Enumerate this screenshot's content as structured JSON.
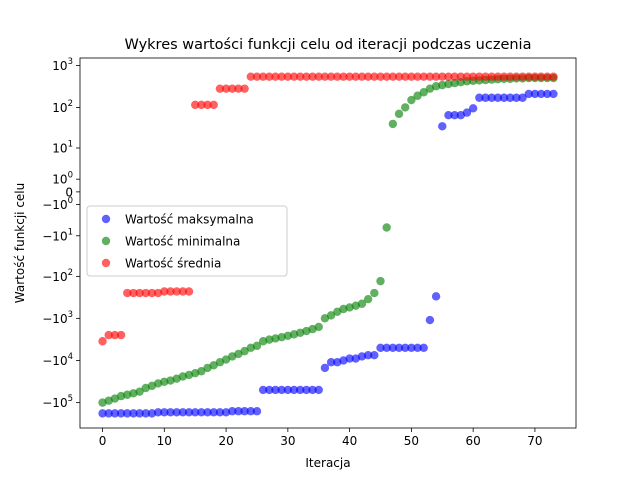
{
  "chart_data": {
    "type": "scatter",
    "title": "Wykres wartości funkcji celu od iteracji podczas uczenia",
    "xlabel": "Iteracja",
    "ylabel": "Wartość funkcji celu",
    "xlim": [
      -3.65,
      76.65
    ],
    "yscale": "symlog",
    "ylim": [
      -400000,
      1500
    ],
    "grid": false,
    "legend_position": "center-left",
    "x_ticks": [
      0,
      10,
      20,
      30,
      40,
      50,
      60,
      70
    ],
    "y_ticks": [
      {
        "value": 1000,
        "base": "10",
        "exp": "3",
        "sign": ""
      },
      {
        "value": 100,
        "base": "10",
        "exp": "2",
        "sign": ""
      },
      {
        "value": 10,
        "base": "10",
        "exp": "1",
        "sign": ""
      },
      {
        "value": 1,
        "base": "10",
        "exp": "0",
        "sign": ""
      },
      {
        "value": 0,
        "base": "0",
        "exp": "",
        "sign": ""
      },
      {
        "value": -1,
        "base": "10",
        "exp": "0",
        "sign": "−"
      },
      {
        "value": -10,
        "base": "10",
        "exp": "1",
        "sign": "−"
      },
      {
        "value": -100,
        "base": "10",
        "exp": "2",
        "sign": "−"
      },
      {
        "value": -1000,
        "base": "10",
        "exp": "3",
        "sign": "−"
      },
      {
        "value": -10000,
        "base": "10",
        "exp": "4",
        "sign": "−"
      },
      {
        "value": -100000,
        "base": "10",
        "exp": "5",
        "sign": "−"
      }
    ],
    "series": [
      {
        "name": "Wartość maksymalna",
        "color": "#0000ff",
        "x": [
          0,
          1,
          2,
          3,
          4,
          5,
          6,
          7,
          8,
          9,
          10,
          11,
          12,
          13,
          14,
          15,
          16,
          17,
          18,
          19,
          20,
          21,
          22,
          23,
          24,
          25,
          26,
          27,
          28,
          29,
          30,
          31,
          32,
          33,
          34,
          35,
          36,
          37,
          38,
          39,
          40,
          41,
          42,
          43,
          44,
          45,
          46,
          47,
          48,
          49,
          50,
          51,
          52,
          53,
          54,
          55,
          56,
          57,
          58,
          59,
          60,
          61,
          62,
          63,
          64,
          65,
          66,
          67,
          68,
          69,
          70,
          71,
          72,
          73
        ],
        "y": [
          -180000,
          -180000,
          -180000,
          -180000,
          -180000,
          -180000,
          -180000,
          -180000,
          -180000,
          -170000,
          -170000,
          -170000,
          -170000,
          -170000,
          -170000,
          -170000,
          -170000,
          -170000,
          -170000,
          -170000,
          -170000,
          -160000,
          -160000,
          -160000,
          -160000,
          -160000,
          -50000,
          -50000,
          -50000,
          -50000,
          -50000,
          -50000,
          -50000,
          -50000,
          -50000,
          -50000,
          -15000,
          -11000,
          -11000,
          -10000,
          -9000,
          -9000,
          -8000,
          -7500,
          -7500,
          -5000,
          -5000,
          -5000,
          -5000,
          -5000,
          -5000,
          -5000,
          -5000,
          -1100,
          -300,
          35,
          65,
          65,
          65,
          75,
          95,
          170,
          170,
          170,
          170,
          170,
          170,
          170,
          170,
          210,
          210,
          210,
          210,
          210
        ]
      },
      {
        "name": "Wartość minimalna",
        "color": "#008000",
        "x": [
          0,
          1,
          2,
          3,
          4,
          5,
          6,
          7,
          8,
          9,
          10,
          11,
          12,
          13,
          14,
          15,
          16,
          17,
          18,
          19,
          20,
          21,
          22,
          23,
          24,
          25,
          26,
          27,
          28,
          29,
          30,
          31,
          32,
          33,
          34,
          35,
          36,
          37,
          38,
          39,
          40,
          41,
          42,
          43,
          44,
          45,
          46,
          47,
          48,
          49,
          50,
          51,
          52,
          53,
          54,
          55,
          56,
          57,
          58,
          59,
          60,
          61,
          62,
          63,
          64,
          65,
          66,
          67,
          68,
          69,
          70,
          71,
          72,
          73
        ],
        "y": [
          -100000,
          -90000,
          -80000,
          -70000,
          -65000,
          -60000,
          -55000,
          -45000,
          -40000,
          -35000,
          -32000,
          -30000,
          -27000,
          -24000,
          -22000,
          -20000,
          -18000,
          -15000,
          -13000,
          -11000,
          -9500,
          -8000,
          -7000,
          -6000,
          -5000,
          -4500,
          -3500,
          -3200,
          -3000,
          -2800,
          -2600,
          -2400,
          -2200,
          -2000,
          -1800,
          -1600,
          -1000,
          -850,
          -700,
          -600,
          -550,
          -500,
          -450,
          -350,
          -250,
          -130,
          -6,
          40,
          70,
          100,
          150,
          190,
          230,
          280,
          320,
          340,
          360,
          380,
          400,
          420,
          430,
          440,
          450,
          460,
          470,
          480,
          480,
          490,
          490,
          500,
          500,
          500,
          500,
          500
        ]
      },
      {
        "name": "Wartość średnia",
        "color": "#ff0000",
        "x": [
          0,
          1,
          2,
          3,
          4,
          5,
          6,
          7,
          8,
          9,
          10,
          11,
          12,
          13,
          14,
          15,
          16,
          17,
          18,
          19,
          20,
          21,
          22,
          23,
          24,
          25,
          26,
          27,
          28,
          29,
          30,
          31,
          32,
          33,
          34,
          35,
          36,
          37,
          38,
          39,
          40,
          41,
          42,
          43,
          44,
          45,
          46,
          47,
          48,
          49,
          50,
          51,
          52,
          53,
          54,
          55,
          56,
          57,
          58,
          59,
          60,
          61,
          62,
          63,
          64,
          65,
          66,
          67,
          68,
          69,
          70,
          71,
          72,
          73
        ],
        "y": [
          -3500,
          -2500,
          -2500,
          -2500,
          -250,
          -250,
          -250,
          -250,
          -250,
          -250,
          -230,
          -230,
          -230,
          -230,
          -230,
          115,
          115,
          115,
          115,
          280,
          280,
          280,
          280,
          280,
          540,
          540,
          540,
          540,
          540,
          540,
          540,
          540,
          540,
          540,
          540,
          540,
          540,
          540,
          540,
          540,
          540,
          540,
          540,
          540,
          540,
          540,
          540,
          540,
          540,
          540,
          540,
          540,
          540,
          540,
          540,
          540,
          540,
          540,
          540,
          540,
          540,
          540,
          540,
          540,
          540,
          540,
          540,
          540,
          540,
          540,
          540,
          540,
          540,
          540
        ]
      }
    ]
  }
}
